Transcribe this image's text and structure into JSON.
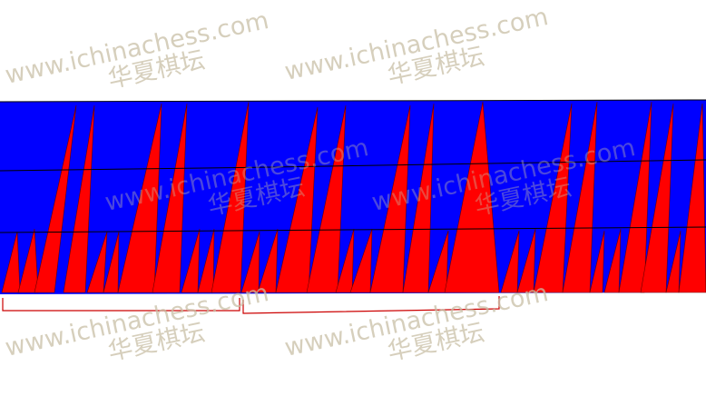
{
  "colors": {
    "background": "#ffffff",
    "band": "#0000ff",
    "peaks": "#ff0000",
    "lines": "#000000",
    "brackets": "#cc0000",
    "watermark": "#c9bfa6"
  },
  "watermark": {
    "latin": "www.ichinachess.com",
    "chinese": "华夏棋坛"
  }
}
